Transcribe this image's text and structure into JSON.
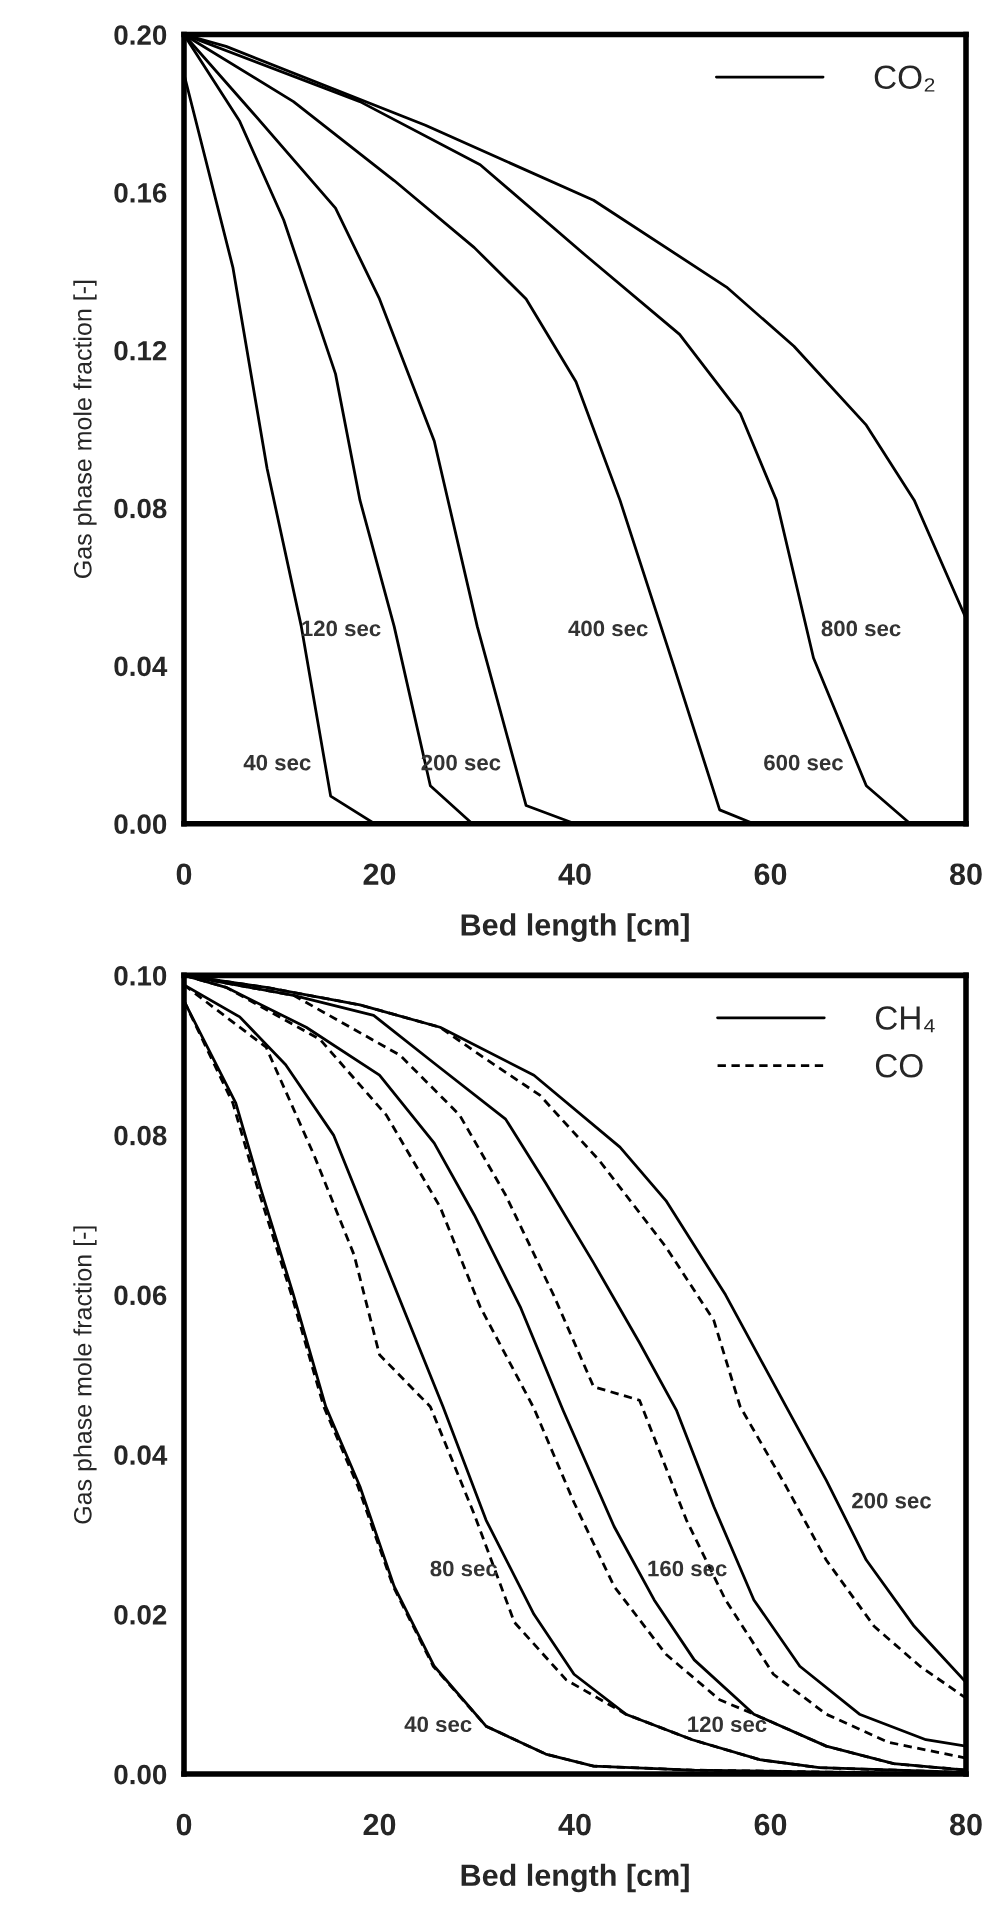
{
  "chart_data": [
    {
      "type": "line",
      "xlabel": "Bed length [cm]",
      "ylabel": "Gas phase mole fraction [-]",
      "xlim": [
        0,
        80
      ],
      "ylim": [
        0,
        0.2
      ],
      "xticks": [
        0,
        20,
        40,
        60,
        80
      ],
      "yticks": [
        {
          "value": 0,
          "label": "0.00"
        },
        {
          "value": 0.04,
          "label": "0.04"
        },
        {
          "value": 0.08,
          "label": "0.08"
        },
        {
          "value": 0.12,
          "label": "0.12"
        },
        {
          "value": 0.16,
          "label": "0.16"
        },
        {
          "value": 0.2,
          "label": "0.20"
        }
      ],
      "legend": "top right",
      "line_style": "solid",
      "series": [
        {
          "name": "CO₂",
          "color": "#000000",
          "x": [
            0,
            5,
            8.5,
            12,
            15,
            19.5
          ],
          "values": [
            0.19,
            0.141,
            0.09,
            0.05,
            0.007,
            0
          ]
        },
        {
          "color": "#000000",
          "x": [
            0,
            5.7,
            10.2,
            15.5,
            18,
            21.5,
            25.2,
            29.5
          ],
          "values": [
            0.2,
            0.178,
            0.153,
            0.114,
            0.082,
            0.05,
            0.0096,
            0
          ]
        },
        {
          "color": "#000000",
          "x": [
            0,
            7.1,
            15.5,
            20,
            25.6,
            30,
            35,
            40
          ],
          "values": [
            0.2,
            0.18,
            0.156,
            0.133,
            0.097,
            0.05,
            0.0046,
            0
          ]
        },
        {
          "color": "#000000",
          "x": [
            0,
            11.2,
            21.5,
            29.7,
            35,
            40.1,
            44.6,
            50.1,
            54.8,
            58.3
          ],
          "values": [
            0.2,
            0.183,
            0.163,
            0.146,
            0.133,
            0.112,
            0.082,
            0.04,
            0.0035,
            0
          ]
        },
        {
          "color": "#000000",
          "x": [
            0,
            18,
            30.3,
            41.1,
            50.7,
            56.9,
            60.6,
            64.4,
            69.8,
            74.3
          ],
          "values": [
            0.2,
            0.183,
            0.167,
            0.144,
            0.124,
            0.104,
            0.082,
            0.042,
            0.0096,
            0
          ]
        },
        {
          "color": "#000000",
          "x": [
            0,
            4.3,
            24.7,
            41.9,
            55.5,
            62.4,
            69.8,
            74.7,
            80
          ],
          "values": [
            0.2,
            0.197,
            0.177,
            0.158,
            0.136,
            0.121,
            0.101,
            0.082,
            0.052
          ]
        }
      ],
      "annotations": [
        "40 sec",
        "120 sec",
        "200 sec",
        "400 sec",
        "600 sec",
        "800 sec"
      ]
    },
    {
      "type": "line",
      "xlabel": "Bed length [cm]",
      "ylabel": "Gas phase mole fraction [-]",
      "xlim": [
        0,
        80
      ],
      "ylim": [
        0,
        0.1
      ],
      "xticks": [
        0,
        20,
        40,
        60,
        80
      ],
      "yticks": [
        {
          "value": 0,
          "label": "0.00"
        },
        {
          "value": 0.02,
          "label": "0.02"
        },
        {
          "value": 0.04,
          "label": "0.04"
        },
        {
          "value": 0.06,
          "label": "0.06"
        },
        {
          "value": 0.08,
          "label": "0.08"
        },
        {
          "value": 0.1,
          "label": "0.10"
        }
      ],
      "legend": "top right",
      "series": [
        {
          "name": "CH₄",
          "color": "#000000",
          "line_style": "solid",
          "x": [
            0,
            5.3,
            7.8,
            11.2,
            14.5,
            18,
            21.5,
            25.6,
            30.9,
            37,
            41.9,
            52,
            80
          ],
          "values": [
            0.0968,
            0.084,
            0.0735,
            0.06,
            0.046,
            0.036,
            0.0235,
            0.0135,
            0.006,
            0.0025,
            0.001,
            0.0005,
            0
          ]
        },
        {
          "name": "CO",
          "color": "#000000",
          "line_style": "dashed",
          "x": [
            0,
            5,
            7.5,
            11,
            14.3,
            17.8,
            21.4,
            25.5,
            30.9,
            37,
            41.9,
            52,
            80
          ],
          "values": [
            0.0968,
            0.084,
            0.0735,
            0.06,
            0.046,
            0.036,
            0.0235,
            0.0135,
            0.006,
            0.0025,
            0.001,
            0.0005,
            0
          ]
        },
        {
          "color": "#000000",
          "line_style": "solid",
          "x": [
            0,
            5.7,
            10.4,
            15.3,
            18.6,
            22.7,
            26.5,
            30.9,
            35.8,
            39.9,
            45.2,
            52,
            58.9,
            65,
            80
          ],
          "values": [
            0.0988,
            0.0948,
            0.0888,
            0.08,
            0.07,
            0.0575,
            0.046,
            0.0318,
            0.02,
            0.0125,
            0.0075,
            0.0043,
            0.0018,
            0.0008,
            0.0002
          ]
        },
        {
          "color": "#000000",
          "line_style": "dashed",
          "x": [
            0,
            8.4,
            13.3,
            17.4,
            20,
            25.2,
            29.7,
            33.8,
            39.1,
            45.2,
            52,
            58.9,
            65,
            80
          ],
          "values": [
            0.0988,
            0.091,
            0.0775,
            0.065,
            0.0525,
            0.046,
            0.0325,
            0.019,
            0.0118,
            0.0075,
            0.0043,
            0.0018,
            0.0008,
            0.0002
          ]
        },
        {
          "color": "#000000",
          "line_style": "solid",
          "x": [
            0,
            4.3,
            12.5,
            20,
            25.6,
            29.7,
            34.4,
            38.8,
            44,
            48.1,
            52.2,
            58.3,
            65.7,
            72.6,
            80
          ],
          "values": [
            0.1,
            0.0985,
            0.0935,
            0.0875,
            0.079,
            0.07,
            0.0585,
            0.0455,
            0.031,
            0.0218,
            0.0143,
            0.0075,
            0.0035,
            0.0013,
            0.0005
          ]
        },
        {
          "color": "#000000",
          "line_style": "dashed",
          "x": [
            0,
            4.3,
            13.9,
            20.7,
            26.2,
            30.3,
            35.8,
            39.9,
            44,
            49.3,
            54.8,
            58.3,
            65.7,
            72.6,
            80
          ],
          "values": [
            0.1,
            0.0985,
            0.092,
            0.0825,
            0.071,
            0.0585,
            0.0458,
            0.034,
            0.0235,
            0.015,
            0.0093,
            0.0075,
            0.0035,
            0.0013,
            0.0005
          ]
        },
        {
          "color": "#000000",
          "line_style": "solid",
          "x": [
            0,
            11.2,
            19.4,
            25.6,
            32.9,
            37,
            41.9,
            46.6,
            50.4,
            54.2,
            58.3,
            63,
            69.1,
            75.9,
            80
          ],
          "values": [
            0.1,
            0.0975,
            0.095,
            0.089,
            0.082,
            0.074,
            0.064,
            0.054,
            0.0455,
            0.0335,
            0.0218,
            0.0135,
            0.0075,
            0.0043,
            0.0035
          ]
        },
        {
          "color": "#000000",
          "line_style": "dashed",
          "x": [
            0,
            11.2,
            22.1,
            28.2,
            32.9,
            37.8,
            41.9,
            46.6,
            51.4,
            55.4,
            60.3,
            65.7,
            72,
            80
          ],
          "values": [
            0.1,
            0.0975,
            0.09,
            0.0825,
            0.0725,
            0.06,
            0.0485,
            0.0468,
            0.0318,
            0.0218,
            0.0125,
            0.0075,
            0.004,
            0.002
          ]
        },
        {
          "color": "#000000",
          "line_style": "solid",
          "x": [
            0,
            8.4,
            18,
            26.2,
            35.8,
            44.6,
            49.3,
            55.4,
            61.6,
            65.7,
            69.8,
            74.7,
            80
          ],
          "values": [
            0.1,
            0.0985,
            0.0963,
            0.0935,
            0.0875,
            0.0785,
            0.0718,
            0.06,
            0.046,
            0.0368,
            0.0268,
            0.0185,
            0.0115
          ]
        },
        {
          "color": "#000000",
          "line_style": "dashed",
          "x": [
            0,
            8.4,
            18,
            26.2,
            30.3,
            36.4,
            42.5,
            49.3,
            54.2,
            56.9,
            61.6,
            65.7,
            70.6,
            75.3,
            80
          ],
          "values": [
            0.1,
            0.0985,
            0.0963,
            0.0935,
            0.09,
            0.085,
            0.0768,
            0.066,
            0.0568,
            0.046,
            0.036,
            0.0268,
            0.0185,
            0.0135,
            0.0095
          ]
        }
      ],
      "annotations": [
        "40 sec",
        "80 sec",
        "120 sec",
        "160 sec",
        "200 sec"
      ]
    }
  ]
}
